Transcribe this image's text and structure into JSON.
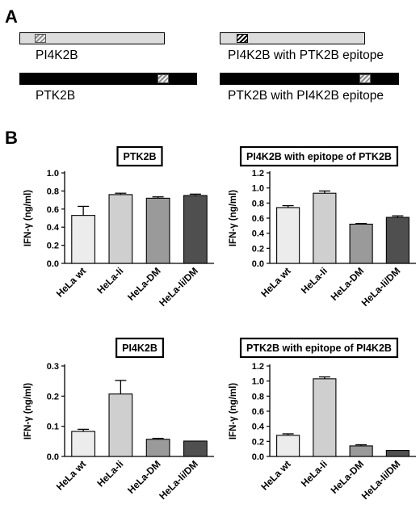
{
  "panels": {
    "a": "A",
    "b": "B"
  },
  "constructs": [
    {
      "label": "PI4K2B",
      "style": "light",
      "epitope": "gray-hatched"
    },
    {
      "label": "PTK2B",
      "style": "dark",
      "epitope": "gray-hatched"
    },
    {
      "label": "PI4K2B with PTK2B epitope",
      "style": "light",
      "epitope": "black-hatched"
    },
    {
      "label": "PTK2B with PI4K2B epitope",
      "style": "dark",
      "epitope": "gray-hatched"
    }
  ],
  "chart_data": [
    {
      "type": "bar",
      "title": "PTK2B",
      "ylabel": "IFN-γ (ng/ml)",
      "categories": [
        "HeLa wt",
        "HeLa-Ii",
        "HeLa-DM",
        "HeLa-Ii/DM"
      ],
      "values": [
        0.53,
        0.76,
        0.72,
        0.75
      ],
      "errors": [
        0.1,
        0.015,
        0.015,
        0.015
      ],
      "ylim": [
        0,
        1.0
      ],
      "yticks": [
        "0.0",
        "0.2",
        "0.4",
        "0.6",
        "0.8",
        "1.0"
      ],
      "colors": [
        "#ececec",
        "#cfcfcf",
        "#9a9a9a",
        "#4f4f4f"
      ]
    },
    {
      "type": "bar",
      "title": "PI4K2B with epitope of PTK2B",
      "ylabel": "IFN-γ (ng/ml)",
      "categories": [
        "HeLa wt",
        "HeLa-Ii",
        "HeLa-DM",
        "HeLa-Ii/DM"
      ],
      "values": [
        0.74,
        0.93,
        0.52,
        0.61
      ],
      "errors": [
        0.025,
        0.03,
        0.008,
        0.02
      ],
      "ylim": [
        0,
        1.2
      ],
      "yticks": [
        "0.0",
        "0.2",
        "0.4",
        "0.6",
        "0.8",
        "1.0",
        "1.2"
      ],
      "colors": [
        "#ececec",
        "#cfcfcf",
        "#9a9a9a",
        "#4f4f4f"
      ]
    },
    {
      "type": "bar",
      "title": "PI4K2B",
      "ylabel": "IFN-γ (ng/ml)",
      "categories": [
        "HeLa wt",
        "HeLa-Ii",
        "HeLa-DM",
        "HeLa-Ii/DM"
      ],
      "values": [
        0.083,
        0.207,
        0.057,
        0.051
      ],
      "errors": [
        0.007,
        0.045,
        0.003,
        0.0
      ],
      "ylim": [
        0,
        0.3
      ],
      "yticks": [
        "0.0",
        "0.1",
        "0.2",
        "0.3"
      ],
      "colors": [
        "#ececec",
        "#cfcfcf",
        "#9a9a9a",
        "#4f4f4f"
      ]
    },
    {
      "type": "bar",
      "title": "PTK2B with epitope of PI4K2B",
      "ylabel": "IFN-γ (ng/ml)",
      "categories": [
        "HeLa wt",
        "HeLa-Ii",
        "HeLa-DM",
        "HeLa-Ii/DM"
      ],
      "values": [
        0.28,
        1.03,
        0.14,
        0.08
      ],
      "errors": [
        0.02,
        0.025,
        0.015,
        0.0
      ],
      "ylim": [
        0,
        1.2
      ],
      "yticks": [
        "0.0",
        "0.2",
        "0.4",
        "0.6",
        "0.8",
        "1.0",
        "1.2"
      ],
      "colors": [
        "#ececec",
        "#cfcfcf",
        "#9a9a9a",
        "#4f4f4f"
      ]
    }
  ]
}
